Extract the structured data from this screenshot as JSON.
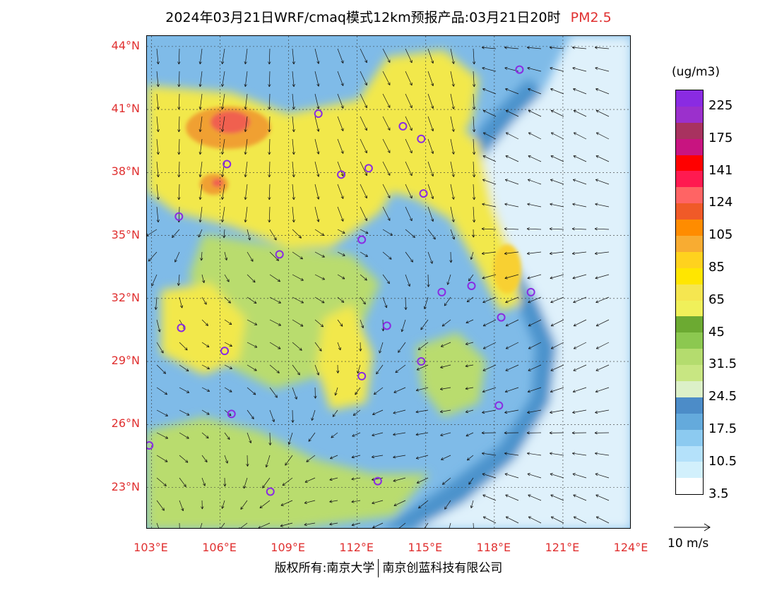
{
  "title": {
    "text": "2024年03月21日WRF/cmaq模式12km预报产品:03月21日20时",
    "pollutant": "PM2.5"
  },
  "map": {
    "lat_ticks": [
      "44°N",
      "41°N",
      "38°N",
      "35°N",
      "32°N",
      "29°N",
      "26°N",
      "23°N"
    ],
    "lon_ticks": [
      "103°E",
      "106°E",
      "109°E",
      "112°E",
      "115°E",
      "118°E",
      "121°E",
      "124°E"
    ],
    "lat_values": [
      44,
      41,
      38,
      35,
      32,
      29,
      26,
      23
    ],
    "lon_values": [
      103,
      106,
      109,
      112,
      115,
      118,
      121,
      124
    ],
    "lat_range": [
      21.0,
      44.5
    ],
    "lon_range": [
      102.8,
      124.0
    ],
    "colors": {
      "sea_light": "#dff1fb",
      "low": "#7fbbe8",
      "mid_blue": "#4c93cc",
      "green": "#b9dc6e",
      "yellow": "#f2e84c",
      "orange": "#f0a030",
      "red": "#f06050",
      "station": "#8a2be2"
    },
    "stations": [
      {
        "lon": 119.1,
        "lat": 42.9
      },
      {
        "lon": 110.3,
        "lat": 40.8
      },
      {
        "lon": 114.0,
        "lat": 40.2
      },
      {
        "lon": 114.8,
        "lat": 39.6
      },
      {
        "lon": 106.3,
        "lat": 38.4
      },
      {
        "lon": 111.3,
        "lat": 37.9
      },
      {
        "lon": 112.5,
        "lat": 38.2
      },
      {
        "lon": 114.9,
        "lat": 37.0
      },
      {
        "lon": 104.2,
        "lat": 35.9
      },
      {
        "lon": 112.2,
        "lat": 34.8
      },
      {
        "lon": 108.6,
        "lat": 34.1
      },
      {
        "lon": 115.7,
        "lat": 32.3
      },
      {
        "lon": 117.0,
        "lat": 32.6
      },
      {
        "lon": 119.6,
        "lat": 32.3
      },
      {
        "lon": 118.3,
        "lat": 31.1
      },
      {
        "lon": 104.3,
        "lat": 30.6
      },
      {
        "lon": 113.3,
        "lat": 30.7
      },
      {
        "lon": 106.2,
        "lat": 29.5
      },
      {
        "lon": 114.8,
        "lat": 29.0
      },
      {
        "lon": 112.2,
        "lat": 28.3
      },
      {
        "lon": 118.2,
        "lat": 26.9
      },
      {
        "lon": 106.5,
        "lat": 26.5
      },
      {
        "lon": 102.9,
        "lat": 25.0
      },
      {
        "lon": 108.2,
        "lat": 22.8
      },
      {
        "lon": 112.9,
        "lat": 23.3
      }
    ]
  },
  "colorbar": {
    "unit": "(ug/m3)",
    "colors": [
      "#8a2be2",
      "#9b30cc",
      "#a8325f",
      "#c81480",
      "#ff0000",
      "#ff1a50",
      "#ff6464",
      "#f05a28",
      "#ff8c00",
      "#f8ac32",
      "#ffd21e",
      "#ffe600",
      "#f5e650",
      "#f0f05a",
      "#6caa32",
      "#8cc850",
      "#b4dc6e",
      "#c8e682",
      "#dcf0c8",
      "#4c8cc8",
      "#64aadc",
      "#8ccaf0",
      "#b4e1fa",
      "#d2f0fc",
      "#ffffff"
    ],
    "labels": [
      "225",
      "175",
      "141",
      "124",
      "105",
      "85",
      "65",
      "45",
      "31.5",
      "24.5",
      "17.5",
      "10.5",
      "3.5"
    ]
  },
  "wind_reference": {
    "label": "10 m/s"
  },
  "copyright": {
    "left": "版权所有:南京大学",
    "right": "南京创蓝科技有限公司"
  }
}
